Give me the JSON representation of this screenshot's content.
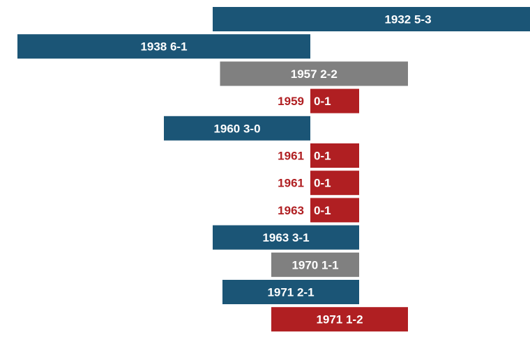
{
  "colors": {
    "home_win": "#1b5576",
    "draw": "#808080",
    "away_win": "#b01f22",
    "label_light": "#ffffff"
  },
  "chart_data": {
    "type": "bar",
    "orientation": "horizontal",
    "title": "",
    "xlabel": "",
    "ylabel": "",
    "grid": false,
    "legend": false,
    "series": [
      {
        "year": "1932",
        "score": "5-3",
        "start": -3,
        "end": 5,
        "result": "home_win",
        "label_outside": false
      },
      {
        "year": "1938",
        "score": "6-1",
        "start": -7,
        "end": -1,
        "result": "home_win",
        "label_outside": false
      },
      {
        "year": "1957",
        "score": "2-2",
        "start": -2.85,
        "end": 1,
        "result": "draw",
        "label_outside": false
      },
      {
        "year": "1959",
        "score": "0-1",
        "start": -1,
        "end": 0,
        "result": "away_win",
        "label_outside": true
      },
      {
        "year": "1960",
        "score": "3-0",
        "start": -4,
        "end": -1,
        "result": "home_win",
        "label_outside": false
      },
      {
        "year": "1961",
        "score": "0-1",
        "start": -1,
        "end": 0,
        "result": "away_win",
        "label_outside": true
      },
      {
        "year": "1961",
        "score": "0-1",
        "start": -1,
        "end": 0,
        "result": "away_win",
        "label_outside": true
      },
      {
        "year": "1963",
        "score": "0-1",
        "start": -1,
        "end": 0,
        "result": "away_win",
        "label_outside": true
      },
      {
        "year": "1963",
        "score": "3-1",
        "start": -3,
        "end": 0,
        "result": "home_win",
        "label_outside": false
      },
      {
        "year": "1970",
        "score": "1-1",
        "start": -1.8,
        "end": 0,
        "result": "draw",
        "label_outside": false
      },
      {
        "year": "1971",
        "score": "2-1",
        "start": -2.8,
        "end": 0,
        "result": "home_win",
        "label_outside": false
      },
      {
        "year": "1971",
        "score": "1-2",
        "start": -1.8,
        "end": 1,
        "result": "away_win",
        "label_outside": false
      }
    ]
  }
}
